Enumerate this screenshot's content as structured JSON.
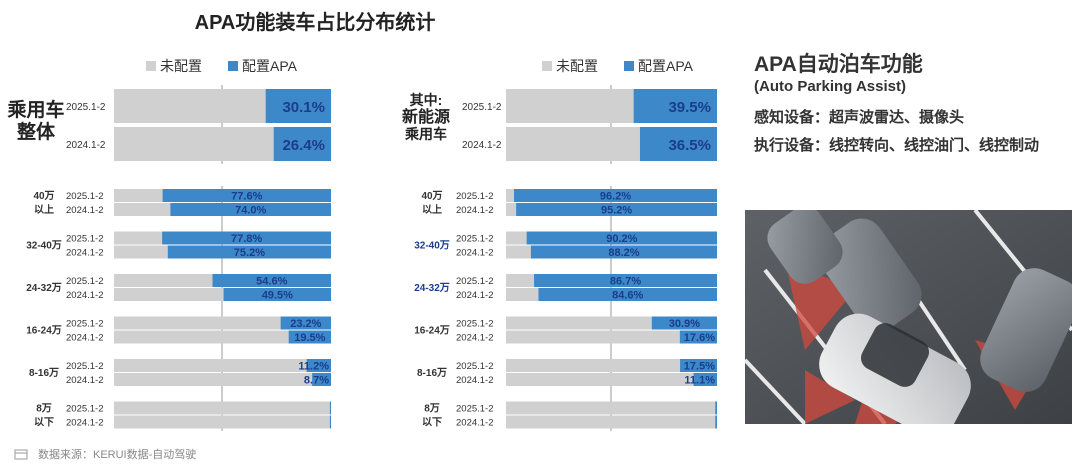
{
  "title": "APA功能装车占比分布统计",
  "legend": {
    "unconfigured": "未配置",
    "configured": "配置APA"
  },
  "colors": {
    "gray": "#d0d0d0",
    "blue": "#3d88c9",
    "label_dark": "#1a3d8c"
  },
  "left_panel": {
    "overall_label_line1": "乘用车",
    "overall_label_line2": "整体",
    "overall_years": [
      "2025.1-2",
      "2024.1-2"
    ],
    "segments": [
      {
        "label_line1": "40万",
        "label_line2": "以上",
        "years": [
          "2025.1-2",
          "2024.1-2"
        ]
      },
      {
        "label_line1": "32-40万",
        "label_line2": "",
        "years": [
          "2025.1-2",
          "2024.1-2"
        ]
      },
      {
        "label_line1": "24-32万",
        "label_line2": "",
        "years": [
          "2025.1-2",
          "2024.1-2"
        ]
      },
      {
        "label_line1": "16-24万",
        "label_line2": "",
        "years": [
          "2025.1-2",
          "2024.1-2"
        ]
      },
      {
        "label_line1": "8-16万",
        "label_line2": "",
        "years": [
          "2025.1-2",
          "2024.1-2"
        ]
      },
      {
        "label_line1": "8万",
        "label_line2": "以下",
        "years": [
          "2025.1-2",
          "2024.1-2"
        ]
      }
    ]
  },
  "right_panel": {
    "overall_label_line1": "其中:",
    "overall_label_line2": "新能源",
    "overall_label_line3": "乘用车",
    "overall_years": [
      "2025.1-2",
      "2024.1-2"
    ],
    "segments": [
      {
        "label_line1": "40万",
        "label_line2": "以上",
        "years": [
          "2025.1-2",
          "2024.1-2"
        ]
      },
      {
        "label_line1": "32-40万",
        "label_line2": "",
        "years": [
          "2025.1-2",
          "2024.1-2"
        ]
      },
      {
        "label_line1": "24-32万",
        "label_line2": "",
        "years": [
          "2025.1-2",
          "2024.1-2"
        ]
      },
      {
        "label_line1": "16-24万",
        "label_line2": "",
        "years": [
          "2025.1-2",
          "2024.1-2"
        ]
      },
      {
        "label_line1": "8-16万",
        "label_line2": "",
        "years": [
          "2025.1-2",
          "2024.1-2"
        ]
      },
      {
        "label_line1": "8万",
        "label_line2": "以下",
        "years": [
          "2025.1-2",
          "2024.1-2"
        ]
      }
    ]
  },
  "apa_info": {
    "title": "APA自动泊车功能",
    "subtitle": "(Auto Parking Assist)",
    "sensing": "感知设备：超声波雷达、摄像头",
    "actuation": "执行设备：线控转向、线控油门、线控制动"
  },
  "footer": "数据来源：KERUI数据-自动驾驶",
  "chart_data": [
    {
      "type": "bar",
      "orientation": "horizontal-stacked-100",
      "panel": "乘用车整体",
      "series_names": [
        "未配置",
        "配置APA"
      ],
      "overall": [
        {
          "period": "2025.1-2",
          "apa": 30.1,
          "label": "30.1%"
        },
        {
          "period": "2024.1-2",
          "apa": 26.4,
          "label": "26.4%"
        }
      ],
      "segments": [
        {
          "category": "40万以上",
          "values": [
            {
              "period": "2025.1-2",
              "apa": 77.6,
              "label": "77.6%"
            },
            {
              "period": "2024.1-2",
              "apa": 74.0,
              "label": "74.0%"
            }
          ]
        },
        {
          "category": "32-40万",
          "values": [
            {
              "period": "2025.1-2",
              "apa": 77.8,
              "label": "77.8%"
            },
            {
              "period": "2024.1-2",
              "apa": 75.2,
              "label": "75.2%"
            }
          ]
        },
        {
          "category": "24-32万",
          "values": [
            {
              "period": "2025.1-2",
              "apa": 54.6,
              "label": "54.6%"
            },
            {
              "period": "2024.1-2",
              "apa": 49.5,
              "label": "49.5%"
            }
          ]
        },
        {
          "category": "16-24万",
          "values": [
            {
              "period": "2025.1-2",
              "apa": 23.2,
              "label": "23.2%"
            },
            {
              "period": "2024.1-2",
              "apa": 19.5,
              "label": "19.5%"
            }
          ]
        },
        {
          "category": "8-16万",
          "values": [
            {
              "period": "2025.1-2",
              "apa": 11.2,
              "label": "11.2%"
            },
            {
              "period": "2024.1-2",
              "apa": 8.7,
              "label": "8.7%"
            }
          ]
        },
        {
          "category": "8万以下",
          "values": [
            {
              "period": "2025.1-2",
              "apa": 0.5,
              "label": ""
            },
            {
              "period": "2024.1-2",
              "apa": 0.5,
              "label": ""
            }
          ]
        }
      ]
    },
    {
      "type": "bar",
      "orientation": "horizontal-stacked-100",
      "panel": "其中:新能源乘用车",
      "series_names": [
        "未配置",
        "配置APA"
      ],
      "overall": [
        {
          "period": "2025.1-2",
          "apa": 39.5,
          "label": "39.5%"
        },
        {
          "period": "2024.1-2",
          "apa": 36.5,
          "label": "36.5%"
        }
      ],
      "segments": [
        {
          "category": "40万以上",
          "values": [
            {
              "period": "2025.1-2",
              "apa": 96.2,
              "label": "96.2%"
            },
            {
              "period": "2024.1-2",
              "apa": 95.2,
              "label": "95.2%"
            }
          ]
        },
        {
          "category": "32-40万",
          "values": [
            {
              "period": "2025.1-2",
              "apa": 90.2,
              "label": "90.2%"
            },
            {
              "period": "2024.1-2",
              "apa": 88.2,
              "label": "88.2%"
            }
          ]
        },
        {
          "category": "24-32万",
          "values": [
            {
              "period": "2025.1-2",
              "apa": 86.7,
              "label": "86.7%"
            },
            {
              "period": "2024.1-2",
              "apa": 84.6,
              "label": "84.6%"
            }
          ]
        },
        {
          "category": "16-24万",
          "values": [
            {
              "period": "2025.1-2",
              "apa": 30.9,
              "label": "30.9%"
            },
            {
              "period": "2024.1-2",
              "apa": 17.6,
              "label": "17.6%"
            }
          ]
        },
        {
          "category": "8-16万",
          "values": [
            {
              "period": "2025.1-2",
              "apa": 17.5,
              "label": "17.5%"
            },
            {
              "period": "2024.1-2",
              "apa": 11.1,
              "label": "11.1%"
            }
          ]
        },
        {
          "category": "8万以下",
          "values": [
            {
              "period": "2025.1-2",
              "apa": 0.8,
              "label": ""
            },
            {
              "period": "2024.1-2",
              "apa": 0.8,
              "label": ""
            }
          ]
        }
      ]
    }
  ]
}
